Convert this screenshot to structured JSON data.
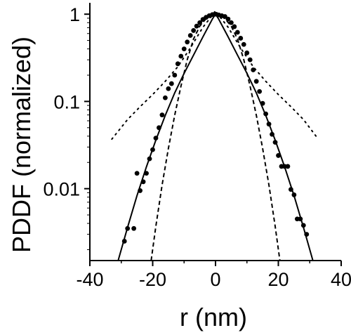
{
  "chart_data": {
    "type": "scatter",
    "title": "",
    "xlabel": "r (nm)",
    "ylabel": "PDDF (normalized)",
    "xlim": [
      -40,
      40
    ],
    "ylim": [
      0.0015,
      1.35
    ],
    "yscale": "log",
    "xticks": [
      -40,
      -20,
      0,
      20,
      40
    ],
    "xtick_labels": [
      "-40",
      "-20",
      "0",
      "20",
      "40"
    ],
    "yticks": [
      1,
      0.1,
      0.01
    ],
    "ytick_labels": [
      "1",
      "0.1",
      "0.01"
    ],
    "grid": false,
    "legend": "none",
    "series": [
      {
        "style": "points",
        "color": "#000000",
        "x": [
          -24,
          -23,
          -22,
          -21,
          -20,
          -19,
          -18,
          -17,
          -16,
          -15,
          -14,
          -13,
          -12,
          -11,
          -10,
          -9,
          -8,
          -7,
          -6,
          -5,
          -4,
          -3,
          -2,
          -1,
          0,
          1,
          2,
          3,
          4,
          5,
          6,
          7,
          8,
          9,
          10,
          11,
          12,
          13,
          14,
          15,
          16,
          17,
          18,
          19,
          20,
          21,
          22,
          23,
          24,
          -29,
          -28,
          -26,
          -25,
          25,
          26,
          27,
          28,
          29
        ],
        "y": [
          0.0095,
          0.012,
          0.015,
          0.022,
          0.028,
          0.038,
          0.05,
          0.07,
          0.11,
          0.14,
          0.16,
          0.2,
          0.27,
          0.33,
          0.4,
          0.48,
          0.57,
          0.65,
          0.73,
          0.8,
          0.87,
          0.92,
          0.96,
          0.99,
          1.0,
          0.98,
          0.96,
          0.94,
          0.88,
          0.8,
          0.72,
          0.62,
          0.53,
          0.45,
          0.36,
          0.3,
          0.23,
          0.17,
          0.13,
          0.095,
          0.072,
          0.055,
          0.042,
          0.034,
          0.024,
          0.018,
          0.018,
          0.018,
          0.0098,
          0.0025,
          0.0035,
          0.0035,
          0.015,
          0.0085,
          0.0045,
          0.0045,
          0.0038,
          0.003
        ]
      },
      {
        "style": "solid-line",
        "color": "#000000",
        "x": [
          -31,
          -28,
          -25,
          -22,
          -19,
          -16,
          -13,
          -10,
          -7,
          -4,
          -1,
          0,
          1,
          4,
          7,
          10,
          13,
          16,
          19,
          22,
          25,
          28,
          31
        ],
        "y": [
          0.0015,
          0.0036,
          0.0083,
          0.0178,
          0.036,
          0.069,
          0.125,
          0.21,
          0.34,
          0.55,
          0.88,
          1.0,
          0.88,
          0.55,
          0.34,
          0.21,
          0.125,
          0.069,
          0.036,
          0.0178,
          0.0083,
          0.0036,
          0.0015
        ]
      },
      {
        "style": "dashed-line",
        "color": "#000000",
        "x": [
          -20.5,
          -19,
          -17,
          -15,
          -13,
          -11,
          -9,
          -7,
          -5,
          -3,
          -1,
          0,
          1,
          3,
          5,
          7,
          9,
          11,
          13,
          15,
          17,
          19,
          20.5
        ],
        "y": [
          0.0015,
          0.0037,
          0.011,
          0.029,
          0.069,
          0.15,
          0.3,
          0.52,
          0.73,
          0.89,
          0.985,
          1.0,
          0.985,
          0.89,
          0.73,
          0.52,
          0.3,
          0.15,
          0.069,
          0.029,
          0.011,
          0.0037,
          0.0015
        ]
      },
      {
        "style": "dotted-line",
        "color": "#000000",
        "x": [
          -33,
          -28,
          -24,
          -20,
          -16,
          -12,
          -8,
          -4,
          -1,
          0,
          1,
          4,
          8,
          12,
          16,
          20,
          24,
          28,
          32
        ],
        "y": [
          0.037,
          0.062,
          0.087,
          0.12,
          0.17,
          0.25,
          0.41,
          0.71,
          0.97,
          1.1,
          0.97,
          0.71,
          0.41,
          0.25,
          0.17,
          0.12,
          0.087,
          0.062,
          0.04
        ]
      }
    ]
  }
}
